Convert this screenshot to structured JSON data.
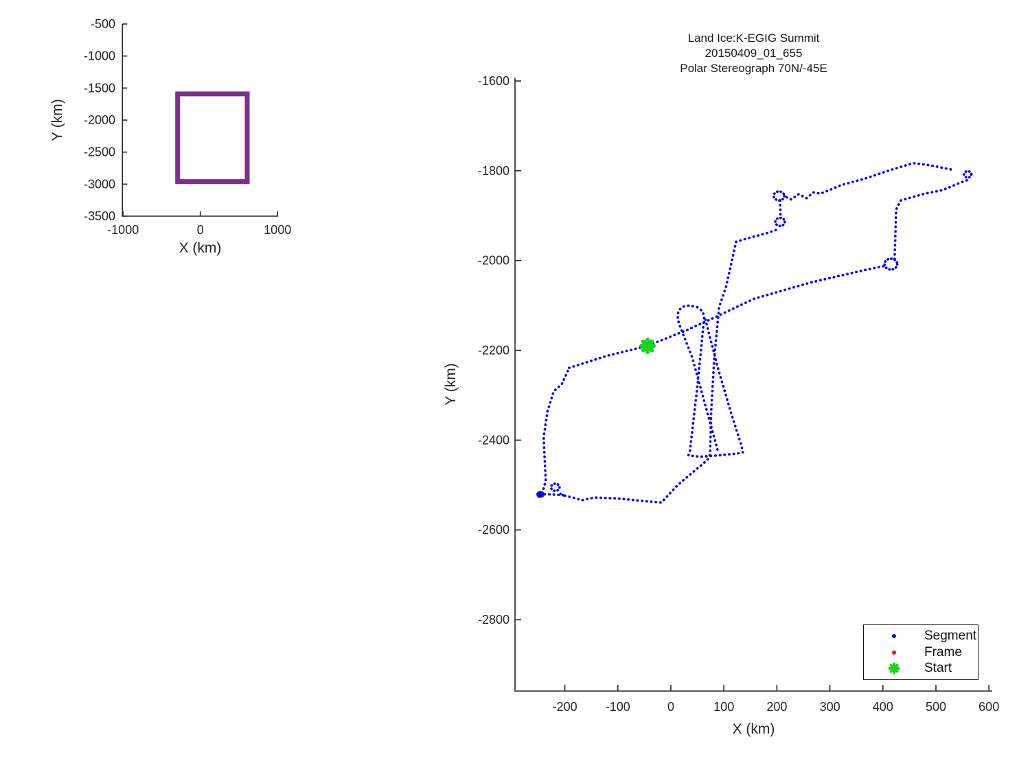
{
  "figure": {
    "title_lines": [
      "Land Ice:K-EGIG Summit",
      "20150409_01_655",
      "Polar Stereograph 70N/-45E"
    ]
  },
  "colors": {
    "track_blue": "#0a08ee",
    "box_purple": "#7E2F8E",
    "start_green": "#17d517",
    "frame_red": "#e81414",
    "axis": "#262626"
  },
  "legend": {
    "entries": [
      {
        "label": "Segment",
        "marker": "dot",
        "color": "#0a08ee"
      },
      {
        "label": "Frame",
        "marker": "dot",
        "color": "#e81414"
      },
      {
        "label": "Start",
        "marker": "asterisk",
        "color": "#17d517"
      }
    ]
  },
  "chart_data": [
    {
      "id": "overview_map",
      "type": "line",
      "title": "",
      "xlabel": "X (km)",
      "ylabel": "Y (km)",
      "xlim": [
        -1000,
        1010
      ],
      "ylim": [
        -3500,
        -500
      ],
      "xticks": [
        -1000,
        0,
        1000
      ],
      "yticks": [
        -500,
        -1000,
        -1500,
        -2000,
        -2500,
        -3000,
        -3500
      ],
      "grid": false,
      "series": [
        {
          "name": "flight-extent-box",
          "color": "#7E2F8E",
          "linewidth": 7,
          "closed": true,
          "points": [
            [
              -293,
              -1592
            ],
            [
              607,
              -1592
            ],
            [
              607,
              -2960
            ],
            [
              -293,
              -2960
            ]
          ]
        }
      ]
    },
    {
      "id": "flight_track",
      "type": "scatter",
      "title": "Land Ice:K-EGIG Summit 20150409_01_655 Polar Stereograph 70N/-45E",
      "xlabel": "X (km)",
      "ylabel": "Y (km)",
      "xlim": [
        -294,
        607
      ],
      "ylim": [
        -2960,
        -1592
      ],
      "xticks": [
        -200,
        -100,
        0,
        100,
        200,
        300,
        400,
        500,
        600
      ],
      "yticks": [
        -1600,
        -1800,
        -2000,
        -2200,
        -2400,
        -2600,
        -2800
      ],
      "grid": false,
      "legend_position": "lower right",
      "start_point": [
        -44,
        -2190
      ],
      "segments": [
        [
          [
            -192,
            -2239
          ],
          [
            -120,
            -2212
          ],
          [
            -44,
            -2190
          ],
          [
            30,
            -2155
          ],
          [
            82,
            -2127
          ],
          [
            157,
            -2085
          ],
          [
            263,
            -2049
          ],
          [
            370,
            -2020
          ],
          [
            403,
            -2012
          ]
        ],
        [
          [
            422,
            -1997
          ],
          [
            425,
            -1886
          ],
          [
            434,
            -1866
          ],
          [
            479,
            -1851
          ],
          [
            513,
            -1843
          ],
          [
            541,
            -1829
          ],
          [
            561,
            -1820
          ]
        ],
        [
          [
            528,
            -1797
          ],
          [
            490,
            -1788
          ],
          [
            457,
            -1783
          ],
          [
            418,
            -1797
          ],
          [
            367,
            -1817
          ],
          [
            321,
            -1832
          ],
          [
            295,
            -1845
          ],
          [
            282,
            -1851
          ],
          [
            269,
            -1848
          ],
          [
            256,
            -1861
          ],
          [
            241,
            -1852
          ],
          [
            227,
            -1864
          ],
          [
            215,
            -1857
          ]
        ],
        [
          [
            206,
            -1866
          ],
          [
            207,
            -1904
          ]
        ],
        [
          [
            198,
            -1932
          ],
          [
            181,
            -1939
          ],
          [
            146,
            -1950
          ],
          [
            123,
            -1958
          ],
          [
            104,
            -2059
          ],
          [
            91,
            -2103
          ],
          [
            82,
            -2215
          ],
          [
            76,
            -2337
          ],
          [
            74,
            -2432
          ],
          [
            69,
            -2444
          ],
          [
            39,
            -2474
          ],
          [
            13,
            -2500
          ],
          [
            -18,
            -2539
          ],
          [
            -48,
            -2536
          ],
          [
            -100,
            -2530
          ],
          [
            -145,
            -2528
          ],
          [
            -168,
            -2534
          ],
          [
            -181,
            -2529
          ],
          [
            -203,
            -2523
          ],
          [
            -212,
            -2517
          ]
        ],
        [
          [
            -249,
            -2526
          ],
          [
            -241,
            -2512
          ],
          [
            -236,
            -2490
          ],
          [
            -238,
            -2444
          ],
          [
            -240,
            -2394
          ],
          [
            -233,
            -2337
          ],
          [
            -221,
            -2291
          ],
          [
            -206,
            -2276
          ],
          [
            -192,
            -2239
          ]
        ],
        [
          [
            -203,
            -2523
          ],
          [
            -225,
            -2521
          ],
          [
            -247,
            -2520
          ]
        ],
        [
          [
            88,
            -2421
          ],
          [
            40,
            -2215
          ],
          [
            15,
            -2140
          ],
          [
            13,
            -2127
          ],
          [
            14,
            -2112
          ],
          [
            22,
            -2103
          ],
          [
            35,
            -2100
          ],
          [
            50,
            -2104
          ],
          [
            60,
            -2113
          ],
          [
            63,
            -2126
          ],
          [
            50,
            -2280
          ],
          [
            36,
            -2424
          ],
          [
            33,
            -2434
          ],
          [
            55,
            -2437
          ],
          [
            90,
            -2434
          ],
          [
            125,
            -2430
          ],
          [
            136,
            -2427
          ],
          [
            133,
            -2412
          ],
          [
            115,
            -2345
          ],
          [
            90,
            -2245
          ],
          [
            65,
            -2131
          ]
        ]
      ],
      "loops": [
        {
          "c": [
            415,
            -2008
          ],
          "r": 12
        },
        {
          "c": [
            560,
            -1808
          ],
          "r": 7
        },
        {
          "c": [
            204,
            -1856
          ],
          "r": 10
        },
        {
          "c": [
            206,
            -1914
          ],
          "r": 9
        },
        {
          "c": [
            -218,
            -2505
          ],
          "r": 8
        }
      ],
      "blobs": [
        {
          "c": [
            -246,
            -2521
          ],
          "rx": 6,
          "ry": 5
        }
      ]
    }
  ]
}
